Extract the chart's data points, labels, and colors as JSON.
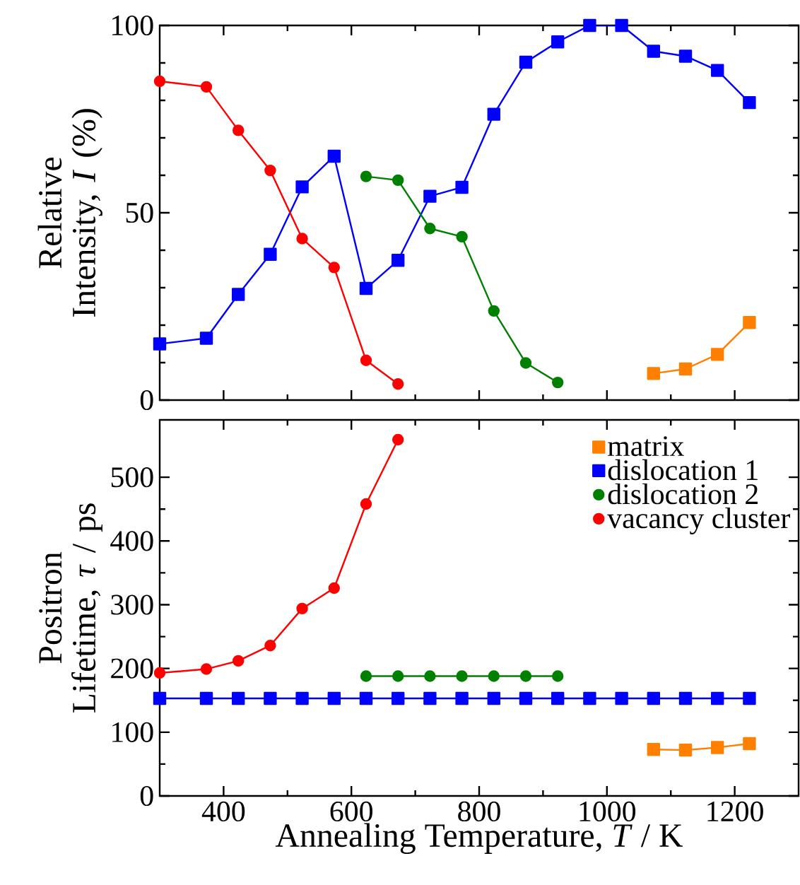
{
  "chart_data": [
    {
      "type": "line",
      "ylabel": "Relative Intensity, *I* (%)",
      "xlim": [
        300,
        1300
      ],
      "xticks": [
        400,
        600,
        800,
        1000,
        1200
      ],
      "ylim": [
        0,
        100
      ],
      "yticks": [
        0,
        50,
        100
      ],
      "tick_labels": "y",
      "grid": false,
      "legend": false,
      "series": [
        {
          "color": "#ff8000",
          "marker": "square",
          "x": [
            1073,
            1123,
            1173,
            1223
          ],
          "values": [
            7.1,
            8.3,
            12.2,
            20.7
          ]
        },
        {
          "color": "#0000ff",
          "marker": "square",
          "x": [
            300,
            373,
            423,
            473,
            523,
            573,
            623,
            673,
            723,
            773,
            823,
            873,
            923,
            973,
            1023,
            1073,
            1123,
            1173,
            1223
          ],
          "values": [
            15.0,
            16.5,
            28.2,
            38.9,
            56.9,
            65.1,
            29.8,
            37.3,
            54.4,
            56.8,
            76.3,
            90.2,
            95.6,
            100,
            100,
            93.1,
            91.8,
            88.0,
            79.4
          ]
        },
        {
          "color": "#008000",
          "marker": "circle",
          "x": [
            623,
            673,
            723,
            773,
            823,
            873,
            923
          ],
          "values": [
            59.7,
            58.7,
            45.8,
            43.6,
            23.8,
            9.9,
            4.7
          ]
        },
        {
          "color": "#ff0000",
          "marker": "circle",
          "x": [
            300,
            373,
            423,
            473,
            523,
            573,
            623,
            673
          ],
          "values": [
            85.1,
            83.6,
            72.0,
            61.3,
            43.1,
            35.4,
            10.6,
            4.3
          ]
        }
      ]
    },
    {
      "type": "line",
      "xlabel": "Annealing Temperature, *T* / K",
      "ylabel": "Positron Lifetime, *τ* / ps",
      "xlim": [
        300,
        1300
      ],
      "xticks": [
        400,
        600,
        800,
        1000,
        1200
      ],
      "ylim": [
        0,
        590
      ],
      "yticks": [
        0,
        100,
        200,
        300,
        400,
        500
      ],
      "grid": false,
      "legend": "top right",
      "series": [
        {
          "name": "matrix",
          "color": "#ff8000",
          "marker": "square",
          "x": [
            1073,
            1123,
            1173,
            1223
          ],
          "values": [
            73,
            72,
            76,
            82
          ]
        },
        {
          "name": "dislocation 1",
          "color": "#0000ff",
          "marker": "square",
          "x": [
            300,
            373,
            423,
            473,
            523,
            573,
            623,
            673,
            723,
            773,
            823,
            873,
            923,
            973,
            1023,
            1073,
            1123,
            1173,
            1223
          ],
          "values": [
            153,
            153,
            153,
            153,
            153,
            153,
            153,
            153,
            153,
            153,
            153,
            153,
            153,
            153,
            153,
            153,
            153,
            153,
            153
          ]
        },
        {
          "name": "dislocation 2",
          "color": "#008000",
          "marker": "circle",
          "x": [
            623,
            673,
            723,
            773,
            823,
            873,
            923
          ],
          "values": [
            188,
            188,
            188,
            188,
            188,
            188,
            188
          ]
        },
        {
          "name": "vacancy cluster",
          "color": "#ff0000",
          "marker": "circle",
          "x": [
            300,
            373,
            423,
            473,
            523,
            573,
            623,
            673
          ],
          "values": [
            193,
            199,
            212,
            236,
            294,
            326,
            458,
            559
          ]
        }
      ]
    }
  ]
}
